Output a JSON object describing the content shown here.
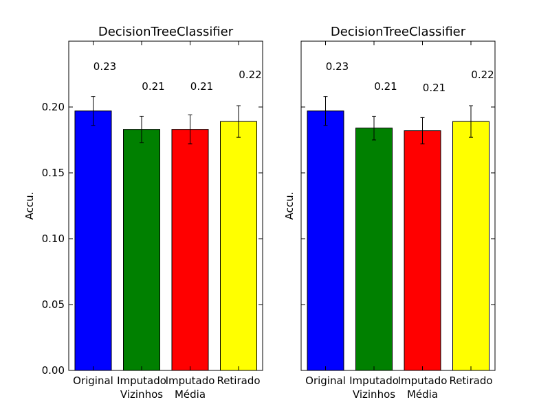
{
  "chart_data": [
    {
      "type": "bar",
      "title": "DecisionTreeClassifier",
      "xlabel": "",
      "ylabel": "Accu.",
      "categories": [
        [
          "Original"
        ],
        [
          "Imputado",
          "Vizinhos"
        ],
        [
          "Imputado",
          "Média"
        ],
        [
          "Retirado"
        ]
      ],
      "values": [
        0.197,
        0.183,
        0.183,
        0.189
      ],
      "errors": [
        0.011,
        0.01,
        0.011,
        0.012
      ],
      "annotations": [
        "0.23",
        "0.21",
        "0.21",
        "0.22"
      ],
      "annotation_y": [
        0.228,
        0.213,
        0.213,
        0.222
      ],
      "colors": [
        "#0000ff",
        "#008000",
        "#ff0000",
        "#ffff00"
      ],
      "ylim": [
        0,
        0.25
      ],
      "yticks": [
        "0.00",
        "0.05",
        "0.10",
        "0.15",
        "0.20"
      ],
      "ytick_values": [
        0,
        0.05,
        0.1,
        0.15,
        0.2
      ],
      "grid": false
    },
    {
      "type": "bar",
      "title": "DecisionTreeClassifier",
      "xlabel": "",
      "ylabel": "Accu.",
      "categories": [
        [
          "Original"
        ],
        [
          "Imputado",
          "Vizinhos"
        ],
        [
          "Imputado",
          "Média"
        ],
        [
          "Retirado"
        ]
      ],
      "values": [
        0.197,
        0.184,
        0.182,
        0.189
      ],
      "errors": [
        0.011,
        0.009,
        0.01,
        0.012
      ],
      "annotations": [
        "0.23",
        "0.21",
        "0.21",
        "0.22"
      ],
      "annotation_y": [
        0.228,
        0.213,
        0.212,
        0.222
      ],
      "colors": [
        "#0000ff",
        "#008000",
        "#ff0000",
        "#ffff00"
      ],
      "ylim": [
        0,
        0.25
      ],
      "yticks": [
        "0.00",
        "0.05",
        "0.10",
        "0.15",
        "0.20"
      ],
      "ytick_values": [
        0,
        0.05,
        0.1,
        0.15,
        0.2
      ],
      "grid": false
    }
  ]
}
